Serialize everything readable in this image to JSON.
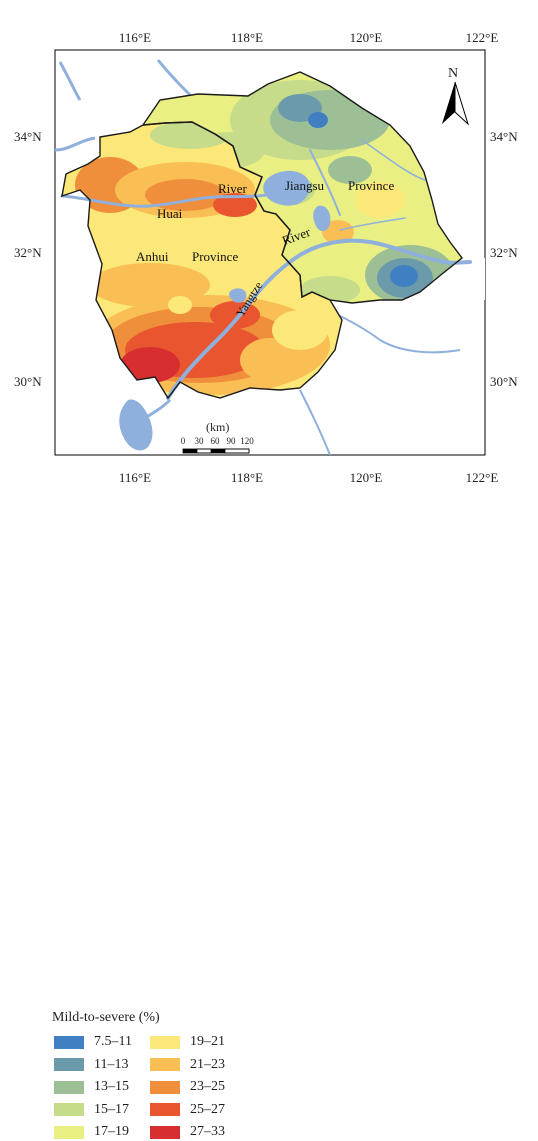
{
  "map": {
    "axes": {
      "top": [
        "116°E",
        "118°E",
        "120°E",
        "122°E"
      ],
      "bottom": [
        "116°E",
        "118°E",
        "120°E",
        "122°E"
      ],
      "left": [
        "34°N",
        "32°N",
        "30°N"
      ],
      "right": [
        "34°N",
        "32°N",
        "30°N"
      ]
    },
    "places": {
      "jiangsu": "Jiangsu",
      "province_east": "Province",
      "river_huai": "River",
      "huai": "Huai",
      "anhui": "Anhui",
      "province_west": "Province",
      "river_yangtze": "River",
      "yangtze": "Yangtze"
    },
    "north_arrow": "N",
    "scale_bar": {
      "unit": "(km)",
      "ticks": [
        "0",
        "30",
        "60",
        "90",
        "120"
      ]
    }
  },
  "legend": {
    "title": "Mild-to-severe (%)",
    "items": [
      {
        "label": "7.5–11",
        "color": "#3f7fc2"
      },
      {
        "label": "11–13",
        "color": "#6b9bab"
      },
      {
        "label": "13–15",
        "color": "#9cbf96"
      },
      {
        "label": "15–17",
        "color": "#c6dc8a"
      },
      {
        "label": "17–19",
        "color": "#e9ef82"
      },
      {
        "label": "19–21",
        "color": "#fbe879"
      },
      {
        "label": "21–23",
        "color": "#f9bf55"
      },
      {
        "label": "23–25",
        "color": "#f08f3b"
      },
      {
        "label": "25–27",
        "color": "#e8552e"
      },
      {
        "label": "27–33",
        "color": "#d72f2f"
      }
    ]
  },
  "colors": {
    "water": "#8fb0dc",
    "boundary": "#1a1a1a"
  }
}
